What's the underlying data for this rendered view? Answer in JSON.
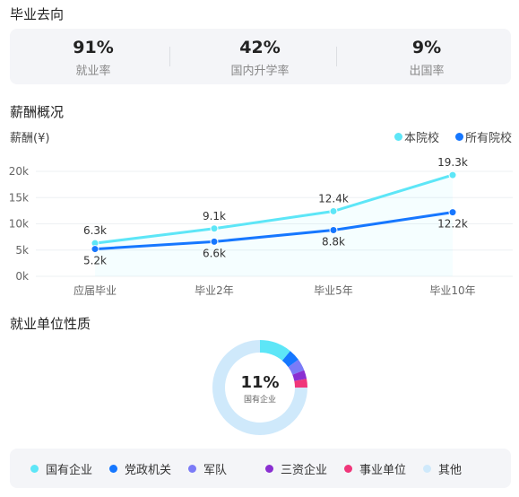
{
  "sections": {
    "destination_title": "毕业去向",
    "salary_title": "薪酬概况",
    "employer_title": "就业单位性质"
  },
  "stats": [
    {
      "value": "91%",
      "label": "就业率"
    },
    {
      "value": "42%",
      "label": "国内升学率"
    },
    {
      "value": "9%",
      "label": "出国率"
    }
  ],
  "salary": {
    "unit_label": "薪酬(¥)",
    "legend": [
      {
        "name": "本院校",
        "color": "#5de6f7"
      },
      {
        "name": "所有院校",
        "color": "#1677ff"
      }
    ]
  },
  "chart_data": {
    "type": "line",
    "ylabel": "薪酬(¥)",
    "categories": [
      "应届毕业",
      "毕业2年",
      "毕业5年",
      "毕业10年"
    ],
    "yticks": [
      "0k",
      "5k",
      "10k",
      "15k",
      "20k"
    ],
    "ylim": [
      0,
      20
    ],
    "series": [
      {
        "name": "本院校",
        "values": [
          6.3,
          9.1,
          12.4,
          19.3
        ],
        "labels": [
          "6.3k",
          "9.1k",
          "12.4k",
          "19.3k"
        ],
        "color": "#5de6f7"
      },
      {
        "name": "所有院校",
        "values": [
          5.2,
          6.6,
          8.8,
          12.2
        ],
        "labels": [
          "5.2k",
          "6.6k",
          "8.8k",
          "12.2k"
        ],
        "color": "#1677ff"
      }
    ],
    "grid": true,
    "legend_position": "top-right"
  },
  "employer": {
    "center_value": "11%",
    "center_label": "国有企业",
    "segments": [
      {
        "name": "国有企业",
        "value": 11,
        "color": "#5de6f7"
      },
      {
        "name": "党政机关",
        "value": 4,
        "color": "#1677ff"
      },
      {
        "name": "军队",
        "value": 4,
        "color": "#7b7bf7"
      },
      {
        "name": "三资企业",
        "value": 3,
        "color": "#8a2fd1"
      },
      {
        "name": "事业单位",
        "value": 3,
        "color": "#f0367a"
      },
      {
        "name": "其他",
        "value": 75,
        "color": "#cfe9fb"
      }
    ]
  }
}
